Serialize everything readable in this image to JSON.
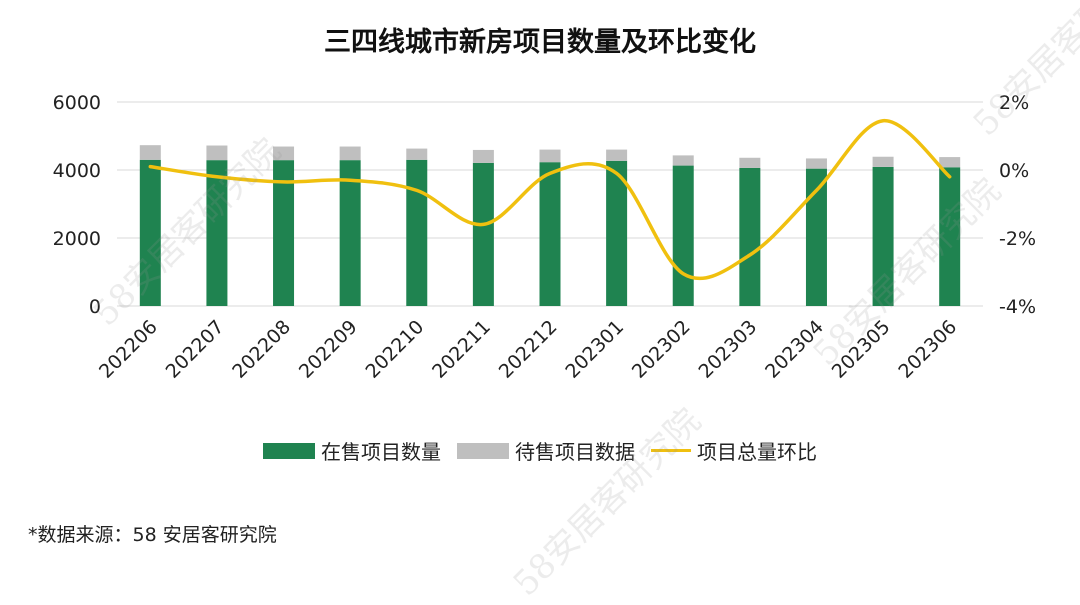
{
  "chart_data": {
    "type": "bar",
    "title": "三四线城市新房项目数量及环比变化",
    "categories": [
      "202206",
      "202207",
      "202208",
      "202209",
      "202210",
      "202211",
      "202212",
      "202301",
      "202302",
      "202303",
      "202304",
      "202305",
      "202306"
    ],
    "series": [
      {
        "name": "在售项目数量",
        "type": "bar",
        "stacked": true,
        "axis": "left",
        "color": "#1f8350",
        "values": [
          4300,
          4290,
          4290,
          4290,
          4300,
          4210,
          4230,
          4270,
          4130,
          4060,
          4040,
          4090,
          4080
        ]
      },
      {
        "name": "待售项目数据",
        "type": "bar",
        "stacked": true,
        "axis": "left",
        "color": "#bfbfbf",
        "values": [
          430,
          430,
          400,
          400,
          330,
          380,
          370,
          330,
          300,
          300,
          300,
          300,
          300
        ]
      },
      {
        "name": "项目总量环比",
        "type": "line",
        "axis": "right",
        "unit": "%",
        "color": "#f0c00f",
        "values": [
          0.1,
          -0.2,
          -0.35,
          -0.3,
          -0.6,
          -1.6,
          -0.1,
          -0.1,
          -3.05,
          -2.5,
          -0.6,
          1.45,
          -0.2
        ]
      }
    ],
    "ylim_left": [
      0,
      6000
    ],
    "yticks_left": [
      "0",
      "2000",
      "4000",
      "6000"
    ],
    "ylim_right": [
      -4,
      2
    ],
    "yticks_right": [
      "-4%",
      "-2%",
      "0%",
      "2%"
    ],
    "grid": true,
    "legend_position": "bottom"
  },
  "source_note": "*数据来源：58 安居客研究院",
  "watermark_text": "58安居客研究院"
}
